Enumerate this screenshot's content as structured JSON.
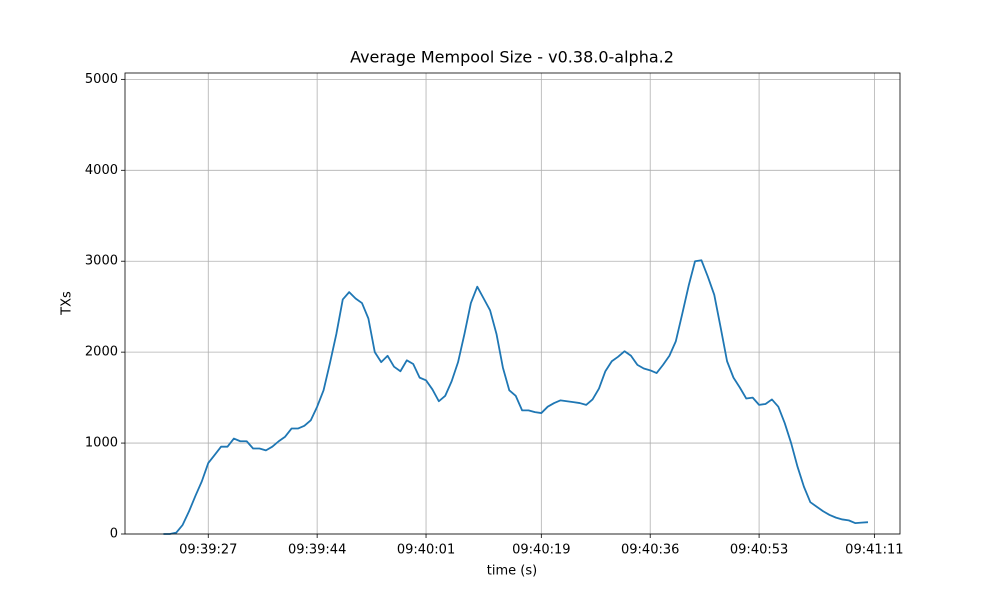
{
  "chart_data": {
    "type": "line",
    "title": "Average Mempool Size  -  v0.38.0-alpha.2",
    "x_label": "time (s)",
    "y_label": "TXs",
    "x": [
      "09:39:20",
      "09:39:21",
      "09:39:22",
      "09:39:23",
      "09:39:24",
      "09:39:25",
      "09:39:26",
      "09:39:27",
      "09:39:28",
      "09:39:29",
      "09:39:30",
      "09:39:31",
      "09:39:32",
      "09:39:33",
      "09:39:34",
      "09:39:35",
      "09:39:36",
      "09:39:37",
      "09:39:38",
      "09:39:39",
      "09:39:40",
      "09:39:41",
      "09:39:42",
      "09:39:43",
      "09:39:44",
      "09:39:45",
      "09:39:46",
      "09:39:47",
      "09:39:48",
      "09:39:49",
      "09:39:50",
      "09:39:51",
      "09:39:52",
      "09:39:53",
      "09:39:54",
      "09:39:55",
      "09:39:56",
      "09:39:57",
      "09:39:58",
      "09:39:59",
      "09:40:00",
      "09:40:01",
      "09:40:02",
      "09:40:03",
      "09:40:04",
      "09:40:05",
      "09:40:06",
      "09:40:07",
      "09:40:08",
      "09:40:09",
      "09:40:10",
      "09:40:11",
      "09:40:12",
      "09:40:13",
      "09:40:14",
      "09:40:15",
      "09:40:16",
      "09:40:17",
      "09:40:18",
      "09:40:19",
      "09:40:20",
      "09:40:21",
      "09:40:22",
      "09:40:23",
      "09:40:24",
      "09:40:25",
      "09:40:26",
      "09:40:27",
      "09:40:28",
      "09:40:29",
      "09:40:30",
      "09:40:31",
      "09:40:32",
      "09:40:33",
      "09:40:34",
      "09:40:35",
      "09:40:36",
      "09:40:37",
      "09:40:38",
      "09:40:39",
      "09:40:40",
      "09:40:41",
      "09:40:42",
      "09:40:43",
      "09:40:44",
      "09:40:45",
      "09:40:46",
      "09:40:47",
      "09:40:48",
      "09:40:49",
      "09:40:50",
      "09:40:51",
      "09:40:52",
      "09:40:53",
      "09:40:54",
      "09:40:55",
      "09:40:56",
      "09:40:57",
      "09:40:58",
      "09:40:59",
      "09:41:00",
      "09:41:01",
      "09:41:02",
      "09:41:03",
      "09:41:04",
      "09:41:05",
      "09:41:06",
      "09:41:07",
      "09:41:08",
      "09:41:09",
      "09:41:10"
    ],
    "series": [
      {
        "color": "#1f77b4",
        "values": [
          0,
          0,
          15,
          100,
          250,
          420,
          580,
          780,
          870,
          960,
          960,
          1050,
          1020,
          1020,
          940,
          940,
          920,
          960,
          1020,
          1070,
          1160,
          1160,
          1190,
          1250,
          1400,
          1580,
          1880,
          2200,
          2580,
          2660,
          2590,
          2540,
          2370,
          2000,
          1890,
          1960,
          1840,
          1790,
          1910,
          1870,
          1720,
          1690,
          1590,
          1460,
          1520,
          1680,
          1890,
          2200,
          2540,
          2720,
          2590,
          2460,
          2200,
          1830,
          1580,
          1520,
          1360,
          1360,
          1340,
          1330,
          1400,
          1440,
          1470,
          1460,
          1450,
          1440,
          1420,
          1480,
          1600,
          1790,
          1900,
          1950,
          2010,
          1960,
          1860,
          1820,
          1800,
          1770,
          1860,
          1960,
          2120,
          2420,
          2730,
          3000,
          3010,
          2830,
          2630,
          2270,
          1900,
          1720,
          1610,
          1490,
          1500,
          1420,
          1430,
          1480,
          1400,
          1220,
          1000,
          740,
          520,
          350,
          300,
          250,
          210,
          180,
          160,
          150,
          120,
          125,
          130
        ]
      }
    ],
    "xlim": [
      "09:39:14",
      "09:41:15"
    ],
    "xticks": [
      "09:39:27",
      "09:39:44",
      "09:40:01",
      "09:40:19",
      "09:40:36",
      "09:40:53",
      "09:41:11"
    ],
    "ylim": [
      0,
      5070
    ],
    "yticks": [
      0,
      1000,
      2000,
      3000,
      4000,
      5000
    ],
    "grid": true
  }
}
